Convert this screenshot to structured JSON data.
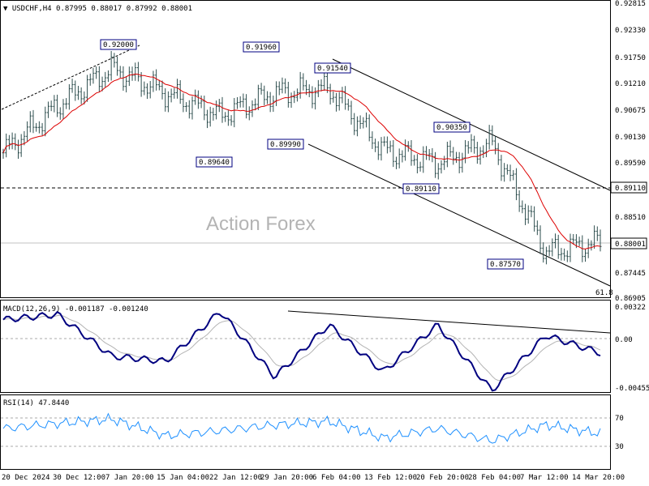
{
  "main": {
    "header": "▼ USDCHF,H4  0.87995 0.88017 0.87992 0.88001",
    "watermark": "Action Forex",
    "fib_label": "61.8",
    "price_ticks": [
      "0.92815",
      "0.92330",
      "0.91750",
      "0.91210",
      "0.90675",
      "0.90130",
      "0.89590",
      "0.89050",
      "0.88510",
      "0.87980",
      "0.87445",
      "0.86905"
    ],
    "current_price": "0.88001",
    "level_tag": "0.89110",
    "annotations": [
      "0.92000",
      "0.91960",
      "0.91540",
      "0.89640",
      "0.89990",
      "0.90350",
      "0.89110",
      "0.87570"
    ]
  },
  "macd": {
    "header": "MACD(12,26,9) -0.001187 -0.001240",
    "ticks": [
      "0.00322",
      "0.00",
      "-0.004559"
    ]
  },
  "rsi": {
    "header": "RSI(14) 47.8440",
    "ticks": [
      "70",
      "30"
    ]
  },
  "x_ticks": [
    "20 Dec 2024",
    "30 Dec 12:00",
    "7 Jan 20:00",
    "15 Jan 04:00",
    "22 Jan 12:00",
    "29 Jan 20:00",
    "6 Feb 04:00",
    "13 Feb 12:00",
    "20 Feb 20:00",
    "28 Feb 04:00",
    "7 Mar 12:00",
    "14 Mar 20:00"
  ],
  "colors": {
    "candles": "#2f4f4f",
    "ma": "#dd0000",
    "macd": "#000080",
    "signal": "#b4b4b4",
    "rsi": "#1e90ff",
    "annotation_border": "#000080"
  },
  "chart_data": [
    {
      "type": "candlestick",
      "title": "USDCHF,H4",
      "ylim": [
        0.86905,
        0.92815
      ],
      "key_points": [
        {
          "label": "20 Dec 2024",
          "close": 0.898
        },
        {
          "label": "30 Dec 12:00",
          "close": 0.9075
        },
        {
          "label": "7 Jan 20:00",
          "close": 0.915
        },
        {
          "label": "15 Jan 04:00",
          "close": 0.91
        },
        {
          "label": "22 Jan 12:00",
          "close": 0.9055
        },
        {
          "label": "29 Jan 20:00",
          "close": 0.91
        },
        {
          "label": "6 Feb 04:00",
          "close": 0.911
        },
        {
          "label": "13 Feb 12:00",
          "close": 0.8985
        },
        {
          "label": "20 Feb 20:00",
          "close": 0.896
        },
        {
          "label": "28 Feb 04:00",
          "close": 0.9
        },
        {
          "label": "7 Mar 12:00",
          "close": 0.878
        },
        {
          "label": "14 Mar 20:00",
          "close": 0.88
        }
      ],
      "swing_points": [
        {
          "label": "0.92000",
          "value": 0.92
        },
        {
          "label": "0.91960",
          "value": 0.9196
        },
        {
          "label": "0.91540",
          "value": 0.9154
        },
        {
          "label": "0.89640",
          "value": 0.8964
        },
        {
          "label": "0.89990",
          "value": 0.8999
        },
        {
          "label": "0.90350",
          "value": 0.9035
        },
        {
          "label": "0.89110",
          "value": 0.8911
        },
        {
          "label": "0.87570",
          "value": 0.8757
        }
      ],
      "horizontal_levels": [
        0.8911,
        0.88001
      ],
      "moving_average": true
    },
    {
      "type": "line",
      "title": "MACD(12,26,9)",
      "ylim": [
        -0.004559,
        0.00322
      ],
      "series": [
        {
          "name": "MACD",
          "values": [
            0.002,
            0.0025,
            -0.0015,
            -0.002,
            0.0028,
            -0.0035,
            0.0015,
            -0.003,
            0.0015,
            -0.0048,
            0.0005,
            -0.0012
          ]
        }
      ]
    },
    {
      "type": "line",
      "title": "RSI(14)",
      "ylim": [
        0,
        100
      ],
      "series": [
        {
          "name": "RSI",
          "values": [
            55,
            62,
            68,
            45,
            52,
            60,
            65,
            42,
            55,
            38,
            60,
            48
          ]
        }
      ]
    }
  ]
}
